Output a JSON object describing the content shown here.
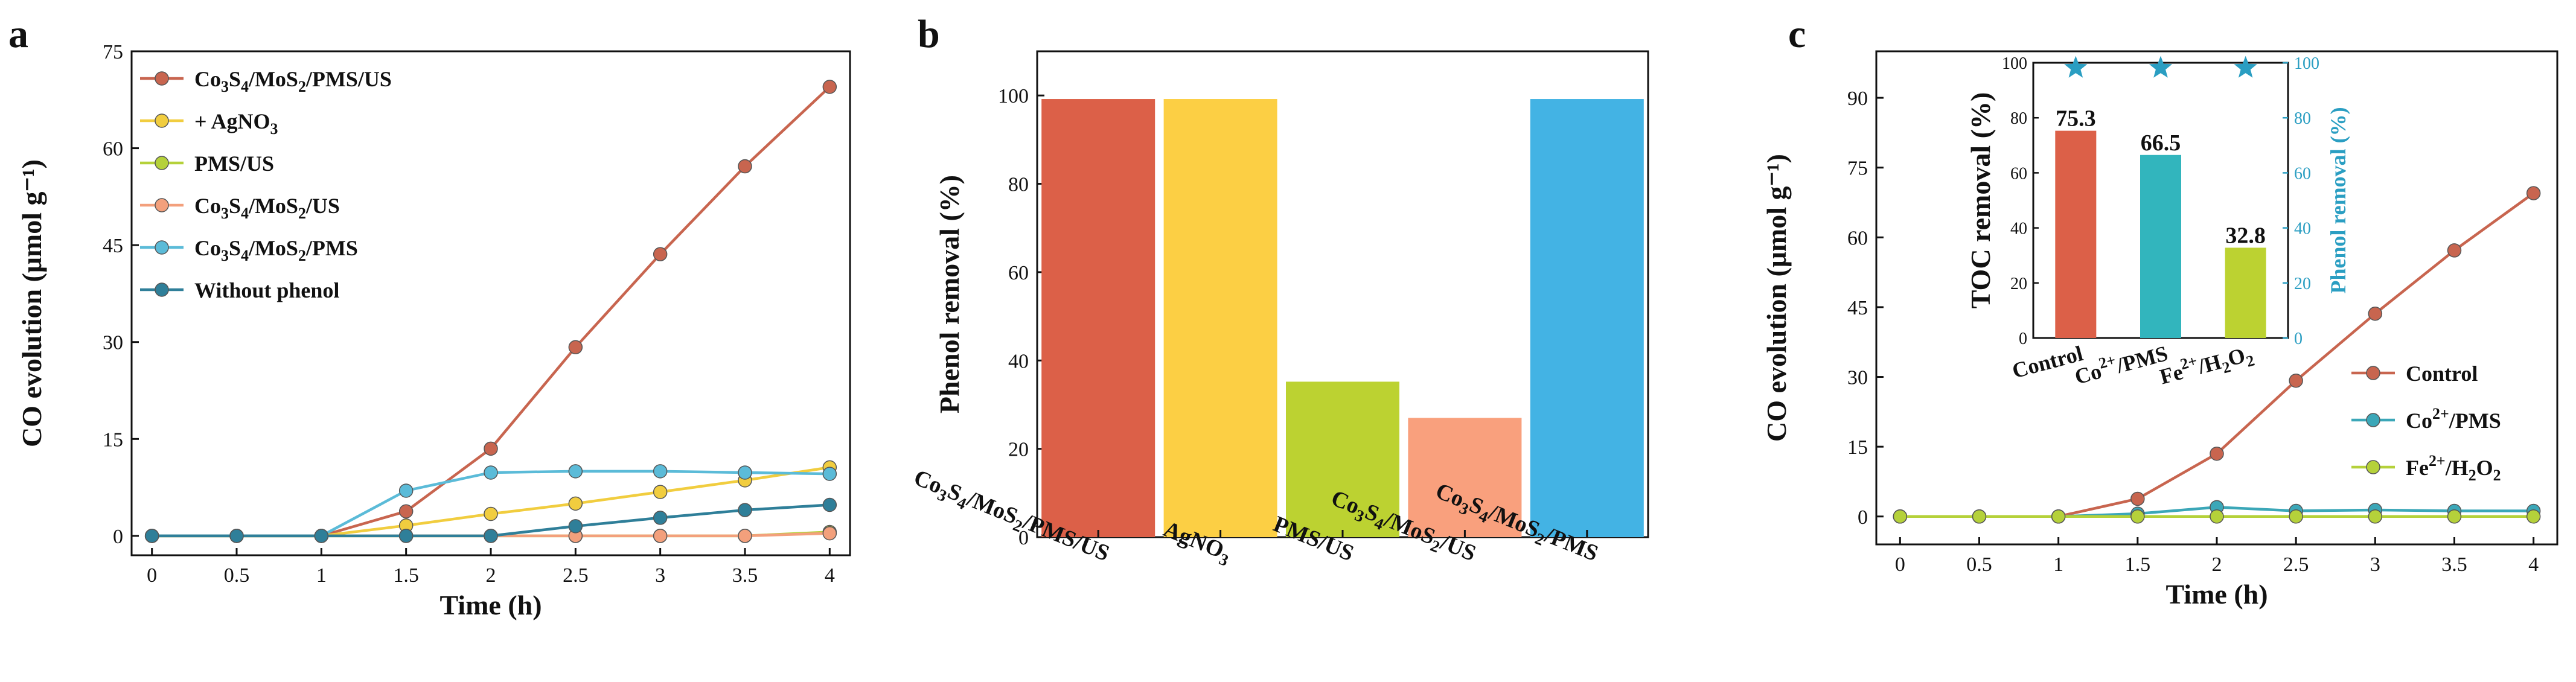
{
  "panels": [
    {
      "letter": "a"
    },
    {
      "letter": "b"
    },
    {
      "letter": "c"
    }
  ],
  "chart_data": [
    {
      "panel": "a",
      "type": "line",
      "xlabel": "Time (h)",
      "ylabel": "CO evolution (μmol g⁻¹)",
      "x": [
        0,
        0.5,
        1,
        1.5,
        2,
        2.5,
        3,
        3.5,
        4
      ],
      "xticks": [
        "0",
        "0.5",
        "1",
        "1.5",
        "2",
        "2.5",
        "3",
        "3.5",
        "4"
      ],
      "xlim": [
        -0.12,
        4.12
      ],
      "ylim": [
        -3,
        75
      ],
      "yticks": [
        0,
        15,
        30,
        45,
        60,
        75
      ],
      "legend_position": "top-left",
      "series": [
        {
          "name": "Co3S4/MoS2/PMS/US",
          "color": "#c8654f",
          "values": [
            0,
            0,
            0,
            3.8,
            13.5,
            29.2,
            43.6,
            57.2,
            69.5
          ]
        },
        {
          "name": "+ AgNO3",
          "color": "#f1cd3f",
          "values": [
            0,
            0,
            0,
            1.6,
            3.4,
            5.0,
            6.8,
            8.6,
            10.6
          ]
        },
        {
          "name": "PMS/US",
          "color": "#b5d13a",
          "values": [
            0,
            0,
            0,
            0,
            0,
            0,
            0,
            0,
            0.6
          ]
        },
        {
          "name": "Co3S4/MoS2/US",
          "color": "#f3a07c",
          "values": [
            0,
            0,
            0,
            0,
            0,
            0,
            0,
            0,
            0.4
          ]
        },
        {
          "name": "Co3S4/MoS2/PMS",
          "color": "#5bbbd8",
          "values": [
            0,
            0,
            0,
            7.0,
            9.8,
            10.0,
            10.0,
            9.8,
            9.6
          ]
        },
        {
          "name": "Without phenol",
          "color": "#2f7f99",
          "values": [
            0,
            0,
            0,
            0,
            0,
            1.5,
            2.8,
            4.0,
            4.8
          ]
        }
      ]
    },
    {
      "panel": "b",
      "type": "bar",
      "ylabel": "Phenol removal (%)",
      "ylim": [
        0,
        110
      ],
      "yticks": [
        0,
        20,
        40,
        60,
        80,
        100
      ],
      "categories": [
        "Co3S4/MoS2/PMS/US",
        "AgNO3",
        "PMS/US",
        "Co3S4/MoS2/US",
        "Co3S4/MoS2/PMS"
      ],
      "values": [
        99.2,
        99.2,
        35.2,
        27.0,
        99.2
      ],
      "colors": [
        "#dc6048",
        "#fccf44",
        "#bcd231",
        "#f9a07d",
        "#43b3e4"
      ]
    },
    {
      "panel": "c",
      "type": "line",
      "xlabel": "Time (h)",
      "ylabel": "CO evolution (μmol g⁻¹)",
      "x": [
        0,
        0.5,
        1,
        1.5,
        2,
        2.5,
        3,
        3.5,
        4
      ],
      "xticks": [
        "0",
        "0.5",
        "1",
        "1.5",
        "2",
        "2.5",
        "3",
        "3.5",
        "4"
      ],
      "xlim": [
        -0.15,
        4.15
      ],
      "ylim": [
        -6,
        100
      ],
      "yticks": [
        0,
        15,
        30,
        45,
        60,
        75,
        90
      ],
      "legend_position": "bottom-right",
      "series": [
        {
          "name": "Control",
          "color": "#c8654f",
          "values": [
            0,
            0,
            0,
            3.8,
            13.5,
            29.2,
            43.6,
            57.2,
            69.5
          ]
        },
        {
          "name": "Co2+/PMS",
          "color": "#3ba7b8",
          "values": [
            0,
            0,
            0,
            0.6,
            2.0,
            1.2,
            1.4,
            1.2,
            1.2
          ]
        },
        {
          "name": "Fe2+/H2O2",
          "color": "#b5d13a",
          "values": [
            0,
            0,
            0,
            0,
            0,
            0,
            0,
            0,
            0
          ]
        }
      ],
      "inset": {
        "type": "bar",
        "categories": [
          "Control",
          "Co2+/PMS",
          "Fe2+/H2O2"
        ],
        "toc_values": [
          75.3,
          66.5,
          32.8
        ],
        "toc_labels": [
          "75.3",
          "66.5",
          "32.8"
        ],
        "phenol_removal": [
          99,
          99,
          99
        ],
        "colors": [
          "#dc6048",
          "#32b5bd",
          "#bcd231"
        ],
        "star_color": "#2a9ec2",
        "ylabel_left": "TOC removal (%)",
        "ylabel_right": "Phenol removal (%)",
        "ylim": [
          0,
          100
        ],
        "yticks_left": [
          0,
          20,
          40,
          60,
          80,
          100
        ],
        "yticks_right": [
          0,
          20,
          40,
          60,
          80,
          100
        ]
      }
    }
  ]
}
